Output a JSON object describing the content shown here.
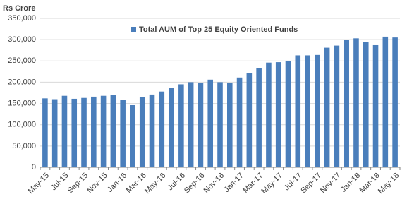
{
  "chart_data": {
    "type": "bar",
    "y_label": "Rs Crore",
    "legend_position": "top",
    "grid": true,
    "categories": [
      "May-15",
      null,
      "Jul-15",
      null,
      "Sep-15",
      null,
      "Nov-15",
      null,
      "Jan-16",
      null,
      "Mar-16",
      null,
      "May-16",
      null,
      "Jul-16",
      null,
      "Sep-16",
      null,
      "Nov-16",
      null,
      "Jan-17",
      null,
      "Mar-17",
      null,
      "May-17",
      null,
      "Jul-17",
      null,
      "Sep-17",
      null,
      "Nov-17",
      null,
      "Jan-18",
      null,
      "Mar-18",
      null,
      "May-18"
    ],
    "series": [
      {
        "name": "Total AUM of Top 25 Equity Oriented Funds",
        "color": "#4a7ebb",
        "values": [
          162000,
          160000,
          168000,
          161000,
          163000,
          166000,
          168000,
          170000,
          159000,
          146000,
          165000,
          171000,
          178000,
          186000,
          195000,
          200000,
          199000,
          206000,
          200000,
          199000,
          211000,
          222000,
          233000,
          246000,
          247000,
          250000,
          263000,
          263000,
          264000,
          281000,
          286000,
          300000,
          303000,
          294000,
          287000,
          307000,
          305000
        ]
      }
    ],
    "ylim": [
      0,
      350000
    ],
    "yticks": [
      0,
      {
        "value": 50000,
        "label": "50,000"
      },
      {
        "value": 100000,
        "label": "100,000"
      },
      {
        "value": 150000,
        "label": "150,000"
      },
      {
        "value": 200000,
        "label": "200,000"
      },
      {
        "value": 250000,
        "label": "250,000"
      },
      {
        "value": 300000,
        "label": "300,000"
      },
      {
        "value": 350000,
        "label": "350,000"
      }
    ]
  }
}
